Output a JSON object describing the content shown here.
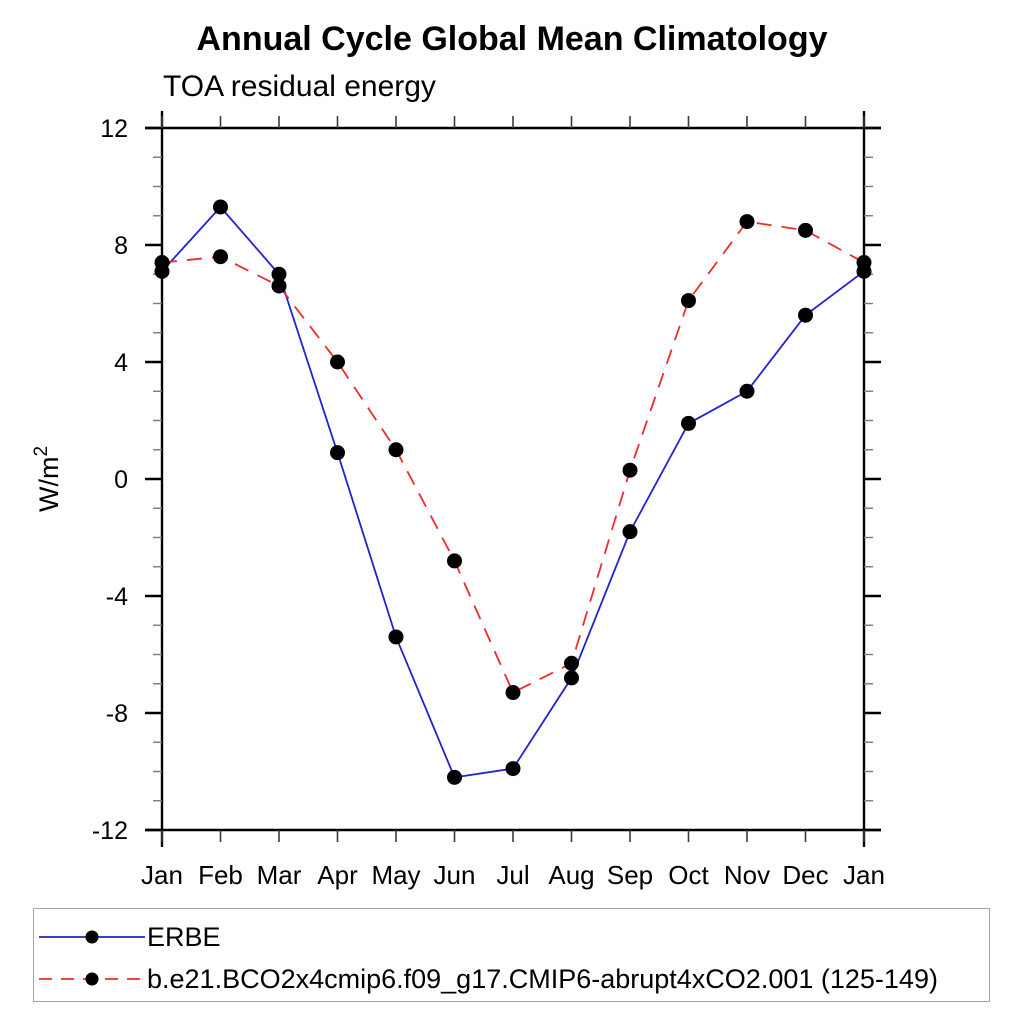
{
  "chart_data": {
    "type": "line",
    "title": "Annual Cycle Global Mean Climatology",
    "subtitle": "TOA residual energy",
    "ylabel": "W/m²",
    "xlabel": "",
    "categories": [
      "Jan",
      "Feb",
      "Mar",
      "Apr",
      "May",
      "Jun",
      "Jul",
      "Aug",
      "Sep",
      "Oct",
      "Nov",
      "Dec",
      "Jan"
    ],
    "ylim": [
      -12,
      12
    ],
    "ytick_major": [
      -12,
      -8,
      -4,
      0,
      4,
      8,
      12
    ],
    "ytick_minor_step": 1,
    "grid": false,
    "legend_position": "bottom-left-box",
    "axis_color": "#000000",
    "minor_tick_color": "#7a7a7a",
    "series": [
      {
        "name": "ERBE",
        "color": "#2323cf",
        "line_style": "solid",
        "marker": "filled-circle",
        "marker_color": "#000000",
        "values": [
          7.1,
          9.3,
          7.0,
          0.9,
          -5.4,
          -10.2,
          -9.9,
          -6.8,
          -1.8,
          1.9,
          3.0,
          5.6,
          7.1
        ]
      },
      {
        "name": "b.e21.BCO2x4cmip6.f09_g17.CMIP6-abrupt4xCO2.001 (125-149)",
        "color": "#ef2c2c",
        "line_style": "dashed",
        "marker": "filled-circle",
        "marker_color": "#000000",
        "values": [
          7.4,
          7.6,
          6.6,
          4.0,
          1.0,
          -2.8,
          -7.3,
          -6.3,
          0.3,
          6.1,
          8.8,
          8.5,
          7.4
        ]
      }
    ]
  }
}
